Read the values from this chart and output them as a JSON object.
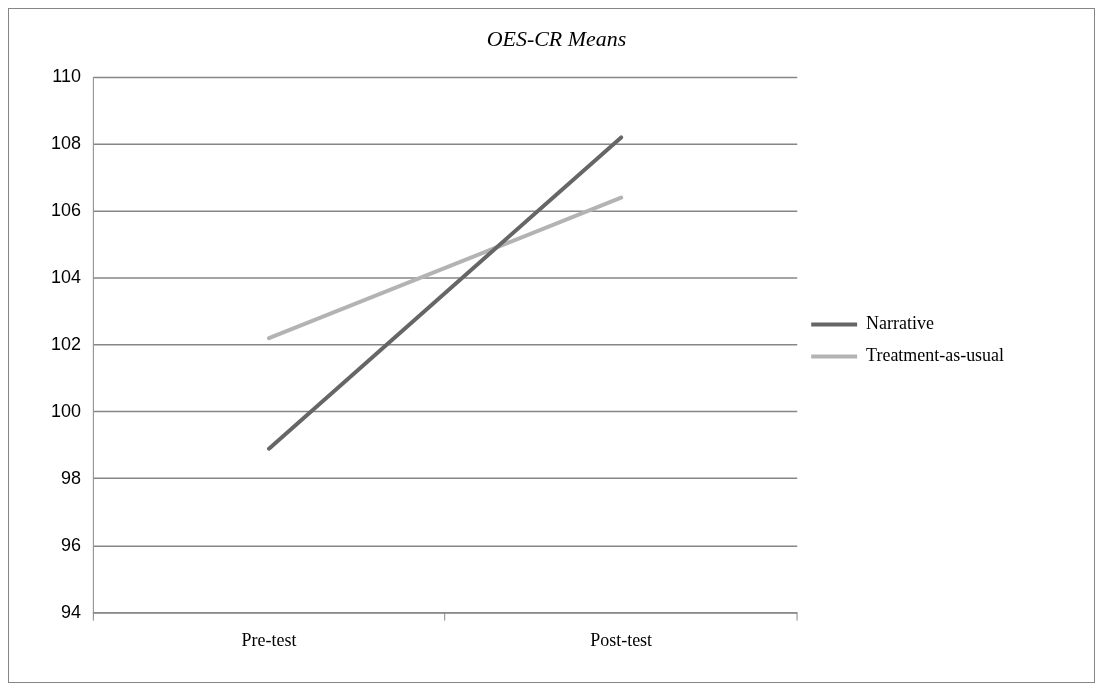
{
  "chart_data": {
    "type": "line",
    "title": "OES-CR Means",
    "categories": [
      "Pre-test",
      "Post-test"
    ],
    "series": [
      {
        "name": "Narrative",
        "color": "#666666",
        "values": [
          98.9,
          108.2
        ]
      },
      {
        "name": "Treatment-as-usual",
        "color": "#b3b3b3",
        "values": [
          102.2,
          106.4
        ]
      }
    ],
    "ylim": [
      94,
      110
    ],
    "yticks": [
      94,
      96,
      98,
      100,
      102,
      104,
      106,
      108,
      110
    ],
    "grid": "y",
    "legend": "right",
    "marker": "none",
    "line_style": "solid"
  }
}
